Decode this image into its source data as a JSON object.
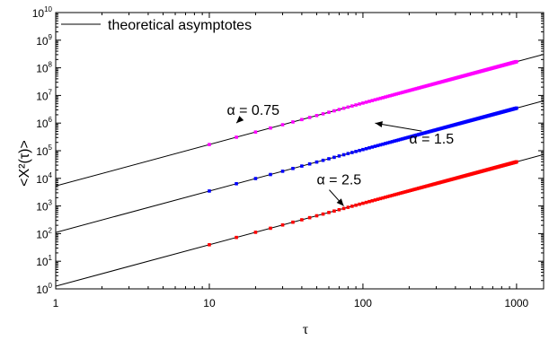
{
  "chart_data": {
    "type": "scatter",
    "title": "",
    "xlabel": "τ",
    "ylabel": "<X²(τ)>",
    "xscale": "log",
    "yscale": "log",
    "xlim": [
      1,
      1500
    ],
    "ylim": [
      1,
      10000000000
    ],
    "x_ticks": [
      {
        "value": 1,
        "label": "1"
      },
      {
        "value": 10,
        "label": "10"
      },
      {
        "value": 100,
        "label": "100"
      },
      {
        "value": 1000,
        "label": "1000"
      }
    ],
    "y_ticks": [
      {
        "value": 1,
        "base": "10",
        "exp": "0"
      },
      {
        "value": 10,
        "base": "10",
        "exp": "1"
      },
      {
        "value": 100,
        "base": "10",
        "exp": "2"
      },
      {
        "value": 1000,
        "base": "10",
        "exp": "3"
      },
      {
        "value": 10000,
        "base": "10",
        "exp": "4"
      },
      {
        "value": 100000,
        "base": "10",
        "exp": "5"
      },
      {
        "value": 1000000,
        "base": "10",
        "exp": "6"
      },
      {
        "value": 10000000,
        "base": "10",
        "exp": "7"
      },
      {
        "value": 100000000,
        "base": "10",
        "exp": "8"
      },
      {
        "value": 1000000000,
        "base": "10",
        "exp": "9"
      },
      {
        "value": 10000000000,
        "base": "10",
        "exp": "10"
      }
    ],
    "grid": false,
    "legend": {
      "position": "top-left",
      "label": "theoretical asymptotes"
    },
    "asymptotes": [
      {
        "alpha": 1.5,
        "y_at_1": 5300,
        "color": "#000000"
      },
      {
        "alpha": 1.5,
        "y_at_1": 110,
        "color": "#000000"
      },
      {
        "alpha": 1.5,
        "y_at_1": 1.25,
        "color": "#000000"
      }
    ],
    "series": [
      {
        "color": "#ff00ff",
        "x_start": 10,
        "x_end": 1000,
        "step": 5,
        "y_at_1": 5300,
        "slope": 1.5
      },
      {
        "color": "#0000ff",
        "x_start": 10,
        "x_end": 1000,
        "step": 5,
        "y_at_1": 110,
        "slope": 1.5
      },
      {
        "color": "#ff0000",
        "x_start": 10,
        "x_end": 1000,
        "step": 5,
        "y_at_1": 1.25,
        "slope": 1.5
      }
    ],
    "annotations": [
      {
        "label": "α = 0.75",
        "x": 13,
        "y": 2000000,
        "to_x": 15,
        "to_y": 1000000,
        "label_anchor": "start"
      },
      {
        "label": "α = 1.5",
        "x": 200,
        "y": 180000,
        "to_x": 120,
        "to_y": 1000000,
        "label_anchor": "start"
      },
      {
        "label": "α = 2.5",
        "x": 50,
        "y": 6000,
        "to_x": 75,
        "to_y": 1000,
        "label_anchor": "start"
      }
    ]
  }
}
